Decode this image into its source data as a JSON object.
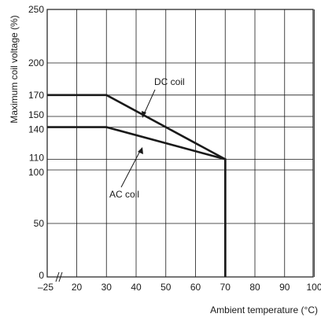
{
  "chart_data": {
    "type": "line",
    "xlabel": "Ambient temperature (°C)",
    "ylabel": "Maximum coil voltage (%)",
    "x_axis_break": true,
    "x_ticks": [
      {
        "value": -25,
        "label": "–25"
      },
      {
        "value": 20,
        "label": "20"
      },
      {
        "value": 30,
        "label": "30"
      },
      {
        "value": 40,
        "label": "40"
      },
      {
        "value": 50,
        "label": "50"
      },
      {
        "value": 60,
        "label": "60"
      },
      {
        "value": 70,
        "label": "70"
      },
      {
        "value": 80,
        "label": "80"
      },
      {
        "value": 90,
        "label": "90"
      },
      {
        "value": 100,
        "label": "100"
      }
    ],
    "y_ticks": [
      0,
      50,
      100,
      110,
      140,
      150,
      170,
      200,
      250
    ],
    "ylim": [
      0,
      250
    ],
    "grid": true,
    "series": [
      {
        "name": "DC coil",
        "x": [
          -25,
          30,
          70,
          70
        ],
        "y": [
          170,
          170,
          110,
          0
        ]
      },
      {
        "name": "AC coil",
        "x": [
          -25,
          30,
          70,
          70
        ],
        "y": [
          140,
          140,
          110,
          0
        ]
      }
    ],
    "annotations": [
      {
        "text": "DC coil",
        "points_to_series": "DC coil"
      },
      {
        "text": "AC coil",
        "points_to_series": "AC coil"
      }
    ],
    "line_color": "#1a1a1a",
    "grid_color": "#1a1a1a"
  }
}
